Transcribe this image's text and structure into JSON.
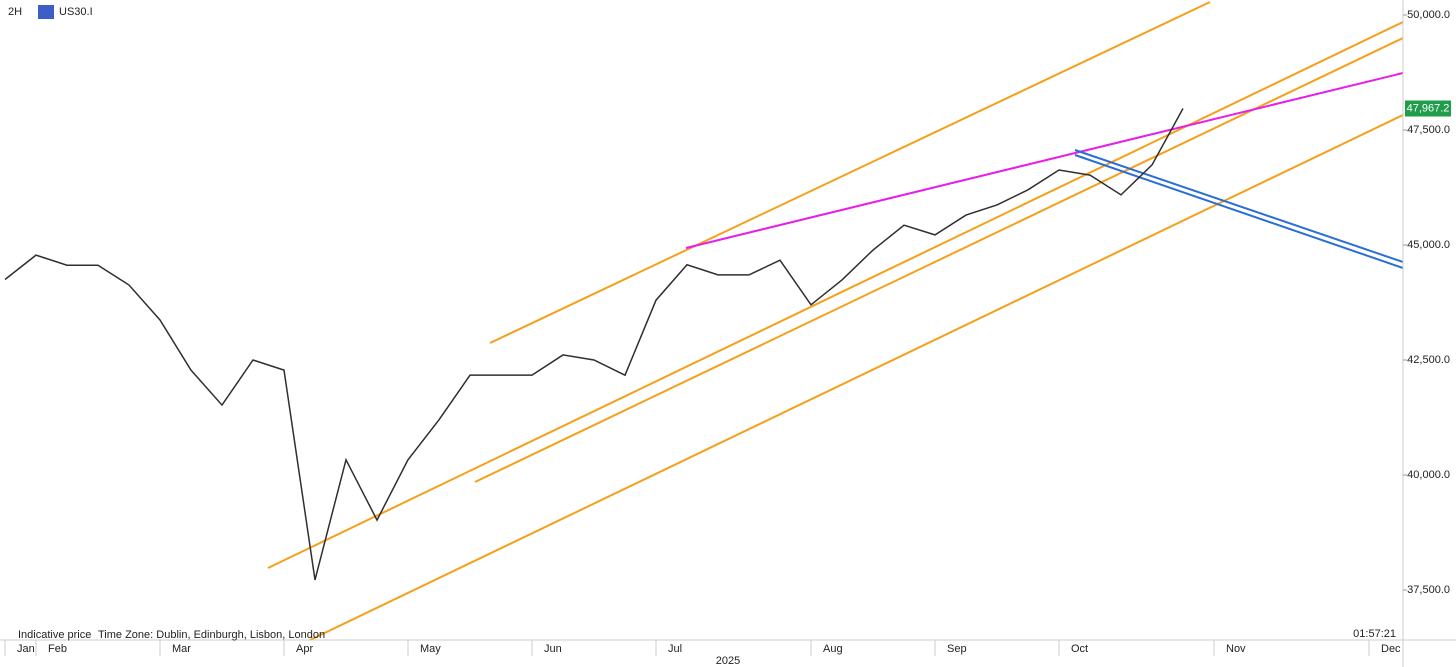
{
  "chart_data": {
    "type": "line",
    "timeframe": "2H",
    "symbol": "US30.I",
    "footer_note": "Indicative price",
    "time_zone": "Time Zone: Dublin, Edinburgh, Lisbon, London",
    "clock": "01:57:21",
    "year_label": "2025",
    "categories": [
      "Jan",
      "Feb",
      null,
      null,
      null,
      "Mar",
      null,
      null,
      null,
      "Apr",
      null,
      null,
      null,
      "May",
      null,
      null,
      null,
      "Jun",
      null,
      null,
      null,
      "Jul",
      null,
      null,
      null,
      null,
      "Aug",
      null,
      null,
      null,
      "Sep",
      null,
      null,
      null,
      "Oct",
      null,
      null,
      null,
      null,
      "Nov",
      null,
      null,
      null,
      null,
      "Dec"
    ],
    "series": [
      {
        "name": "US30.I",
        "color": "#2f2f2f",
        "values": [
          44250,
          44780,
          44560,
          44560,
          44130,
          43370,
          42280,
          41520,
          42500,
          42280,
          37720,
          40330,
          39020,
          40330,
          41200,
          42170,
          42170,
          42170,
          42610,
          42500,
          42170,
          43800,
          44570,
          44350,
          44350,
          44670,
          43700,
          44240,
          44890,
          45430,
          45220,
          45650,
          45870,
          46200,
          46630,
          46520,
          46090,
          46740,
          47967.2,
          null,
          null,
          null,
          null,
          null,
          null
        ]
      }
    ],
    "price_label": {
      "value": 47967.2,
      "label": "47,967.2"
    },
    "ylim": [
      36413,
      50326
    ],
    "yticks": [
      {
        "value": 37500,
        "label": "37,500.0"
      },
      {
        "value": 40000,
        "label": "40,000.0"
      },
      {
        "value": 42500,
        "label": "42,500.0"
      },
      {
        "value": 45000,
        "label": "45,000.0"
      },
      {
        "value": 47500,
        "label": "47,500.0"
      },
      {
        "value": 50000,
        "label": "50,000.0"
      }
    ]
  }
}
